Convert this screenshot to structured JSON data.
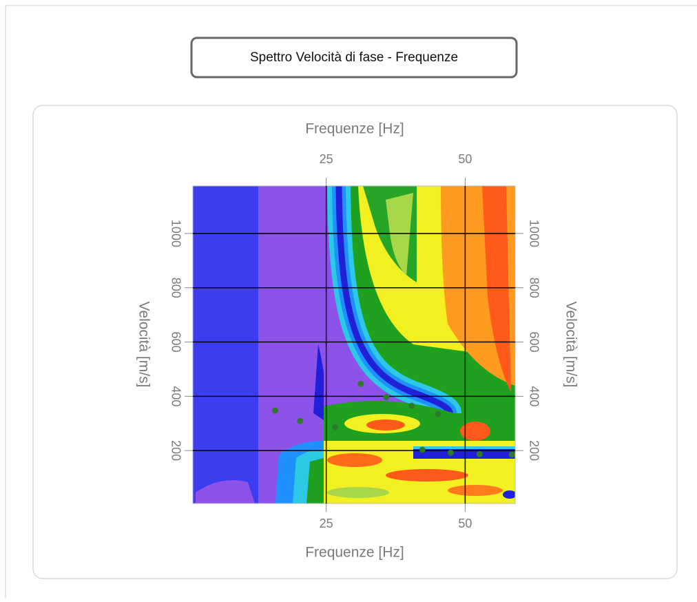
{
  "chart_data": {
    "type": "scatter",
    "title": "Spettro Velocità di fase - Frequenze",
    "x_label": "Frequenze [Hz]",
    "y_label": "Velocità [m/s]",
    "x": [
      15.8,
      20.3,
      26.6,
      31.2,
      35.8,
      40.4,
      45.1,
      42.3,
      47.4,
      52.6,
      58.4
    ],
    "values": [
      347,
      309,
      286,
      446,
      397,
      365,
      334,
      203,
      192,
      187,
      185
    ],
    "color": "#2d7a2d",
    "xlim": [
      1,
      59
    ],
    "ylim": [
      5,
      1175
    ],
    "xticks": [
      25,
      50
    ],
    "yticks": [
      200,
      400,
      600,
      800,
      1000
    ],
    "grid": true
  }
}
